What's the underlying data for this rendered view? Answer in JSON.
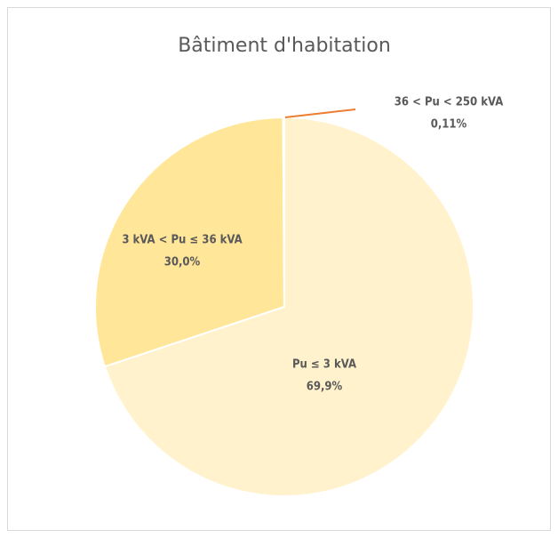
{
  "chart_data": {
    "type": "pie",
    "title": "Bâtiment d'habitation",
    "categories": [
      "Pu ≤ 3 kVA",
      "3 kVA < Pu ≤ 36 kVA",
      "36 < Pu < 250 kVA"
    ],
    "values": [
      69.9,
      30.0,
      0.11
    ],
    "value_labels": [
      "69,9%",
      "30,0%",
      "0,11%"
    ],
    "colors": [
      "#fff2cc",
      "#ffe699",
      "#ed7d31"
    ]
  }
}
